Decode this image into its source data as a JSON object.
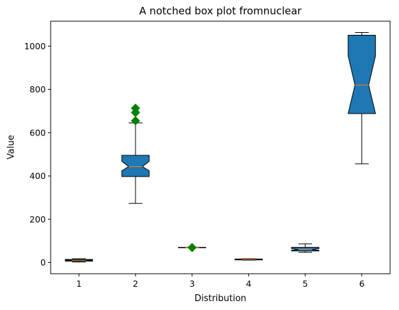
{
  "chart_data": {
    "type": "boxplot",
    "title": "A notched box plot fromnuclear",
    "xlabel": "Distribution",
    "ylabel": "Value",
    "ylim": [
      -52,
      1115
    ],
    "yticks": [
      0,
      200,
      400,
      600,
      800,
      1000
    ],
    "categories": [
      "1",
      "2",
      "3",
      "4",
      "5",
      "6"
    ],
    "grid": false,
    "box_color": "#1f77b4",
    "median_color": "#ff7f0e",
    "flier_color": "#008000",
    "notched": true,
    "boxes": [
      {
        "label": "1",
        "whislo": 2,
        "q1": 6,
        "med": 10,
        "q3": 14,
        "whishi": 17,
        "notch_lo": 8,
        "notch_hi": 12,
        "fliers": []
      },
      {
        "label": "2",
        "whislo": 273,
        "q1": 397,
        "med": 443,
        "q3": 495,
        "whishi": 645,
        "notch_lo": 424,
        "notch_hi": 468,
        "fliers": [
          655,
          693,
          713
        ]
      },
      {
        "label": "3",
        "whislo": 68,
        "q1": 68,
        "med": 69,
        "q3": 70,
        "whishi": 70,
        "notch_lo": 68.5,
        "notch_hi": 69.5,
        "fliers": [
          69
        ]
      },
      {
        "label": "4",
        "whislo": 11,
        "q1": 12,
        "med": 14,
        "q3": 16,
        "whishi": 17,
        "notch_lo": 13,
        "notch_hi": 15,
        "fliers": []
      },
      {
        "label": "5",
        "whislo": 47,
        "q1": 53,
        "med": 60,
        "q3": 70,
        "whishi": 86,
        "notch_lo": 56,
        "notch_hi": 64,
        "fliers": []
      },
      {
        "label": "6",
        "whislo": 456,
        "q1": 688,
        "med": 820,
        "q3": 1050,
        "whishi": 1063,
        "notch_lo": 688,
        "notch_hi": 955,
        "fliers": []
      }
    ]
  }
}
